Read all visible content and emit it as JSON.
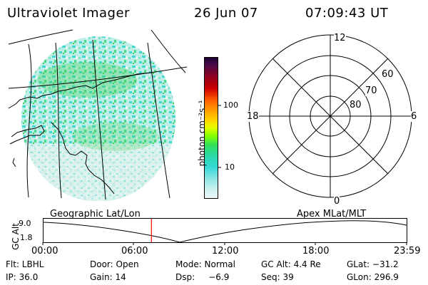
{
  "header": {
    "title": "Ultraviolet Imager",
    "date": "26 Jun 07",
    "time": "07:09:43 UT"
  },
  "colorbar": {
    "unit_label": "photon cm⁻²s⁻¹",
    "tick_100": "100",
    "tick_10": "10"
  },
  "polar": {
    "mlt_top": "12",
    "mlt_bottom": "0",
    "mlt_left": "18",
    "mlt_right": "6",
    "lat_60": "60",
    "lat_70": "70",
    "lat_80": "80"
  },
  "orbit": {
    "ylabel": "GC Alt",
    "ymax": "9.0",
    "ymin": "1.8",
    "left_caption": "Geographic Lat/Lon",
    "right_caption": "Apex  MLat/MLT",
    "xticks": [
      "00:00",
      "06:00",
      "12:00",
      "18:00",
      "23:59"
    ],
    "current_fraction": 0.2987,
    "marker_color": "#ff0000"
  },
  "info": {
    "filter": "Flt: LBHL",
    "door": "Door: Open",
    "mode": "Mode: Normal",
    "gc_alt": "GC Alt: 4.4 Re",
    "glat": "GLat: −31.2",
    "ip": "IP: 36.0",
    "gain": "Gain: 14",
    "dsp": "Dsp:     −6.9",
    "seq": "Seq: 39",
    "glon": "GLon: 296.9"
  },
  "colors": {
    "background": "#ffffff",
    "ink": "#000000",
    "uv_cyan": "#3fd9d0",
    "uv_green": "#3fcf55",
    "uv_faint": "#d6ece9"
  }
}
